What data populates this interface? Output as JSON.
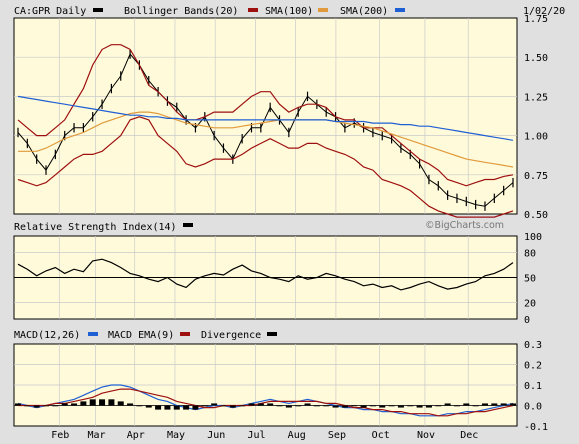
{
  "chart_data": [
    {
      "type": "line",
      "panel": "price",
      "title": "CA:GPR Daily",
      "date_label": "1/02/20",
      "watermark": "©BigCharts.com",
      "legend": [
        {
          "label": "Bollinger Bands(20)",
          "color": "#000000"
        },
        {
          "label": "SMA(100)",
          "color": "#9e1010"
        },
        {
          "label": "SMA(200)",
          "color": "#e09a3c"
        }
      ],
      "legend_extra_swatch": "#1f5fd4",
      "x_tick_labels": [
        "Feb",
        "Mar",
        "Apr",
        "May",
        "Jun",
        "Jul",
        "Aug",
        "Sep",
        "Oct",
        "Nov",
        "Dec"
      ],
      "y_ticks": [
        "1.75",
        "1.50",
        "1.25",
        "1.00",
        "0.75",
        "0.50"
      ],
      "ylim": [
        0.5,
        1.75
      ],
      "series": [
        {
          "name": "Price",
          "color": "#000000",
          "values": [
            1.02,
            0.95,
            0.85,
            0.78,
            0.88,
            1.0,
            1.05,
            1.05,
            1.12,
            1.2,
            1.3,
            1.38,
            1.52,
            1.45,
            1.35,
            1.28,
            1.22,
            1.18,
            1.1,
            1.05,
            1.12,
            1.0,
            0.92,
            0.85,
            0.98,
            1.05,
            1.05,
            1.18,
            1.1,
            1.02,
            1.15,
            1.25,
            1.2,
            1.15,
            1.12,
            1.05,
            1.08,
            1.05,
            1.02,
            1.0,
            0.98,
            0.92,
            0.88,
            0.82,
            0.72,
            0.68,
            0.62,
            0.6,
            0.58,
            0.56,
            0.55,
            0.6,
            0.65,
            0.7
          ]
        },
        {
          "name": "Bollinger Upper",
          "color": "#9e1010",
          "values": [
            1.1,
            1.05,
            1.0,
            1.0,
            1.05,
            1.1,
            1.2,
            1.3,
            1.45,
            1.55,
            1.58,
            1.58,
            1.55,
            1.45,
            1.32,
            1.28,
            1.22,
            1.15,
            1.1,
            1.1,
            1.12,
            1.15,
            1.15,
            1.15,
            1.2,
            1.25,
            1.28,
            1.28,
            1.2,
            1.15,
            1.18,
            1.2,
            1.2,
            1.18,
            1.12,
            1.1,
            1.1,
            1.05,
            1.05,
            1.05,
            1.0,
            0.95,
            0.9,
            0.85,
            0.82,
            0.78,
            0.72,
            0.7,
            0.68,
            0.7,
            0.72,
            0.72,
            0.74,
            0.75
          ]
        },
        {
          "name": "Bollinger Lower",
          "color": "#9e1010",
          "values": [
            0.72,
            0.7,
            0.68,
            0.7,
            0.75,
            0.8,
            0.85,
            0.88,
            0.88,
            0.9,
            0.95,
            1.0,
            1.1,
            1.12,
            1.1,
            1.0,
            0.95,
            0.9,
            0.82,
            0.8,
            0.82,
            0.85,
            0.85,
            0.85,
            0.88,
            0.92,
            0.95,
            0.98,
            0.95,
            0.92,
            0.92,
            0.95,
            0.95,
            0.92,
            0.9,
            0.88,
            0.85,
            0.8,
            0.78,
            0.72,
            0.7,
            0.68,
            0.65,
            0.6,
            0.55,
            0.52,
            0.5,
            0.48,
            0.48,
            0.48,
            0.48,
            0.48,
            0.5,
            0.52
          ]
        },
        {
          "name": "SMA(100)",
          "color": "#e09a3c",
          "values": [
            0.9,
            0.9,
            0.9,
            0.92,
            0.95,
            0.98,
            1.0,
            1.02,
            1.05,
            1.08,
            1.1,
            1.12,
            1.14,
            1.15,
            1.15,
            1.14,
            1.12,
            1.1,
            1.08,
            1.07,
            1.06,
            1.05,
            1.05,
            1.05,
            1.06,
            1.07,
            1.08,
            1.09,
            1.1,
            1.1,
            1.1,
            1.1,
            1.1,
            1.1,
            1.09,
            1.08,
            1.07,
            1.06,
            1.05,
            1.03,
            1.01,
            0.99,
            0.97,
            0.95,
            0.93,
            0.91,
            0.89,
            0.87,
            0.85,
            0.84,
            0.83,
            0.82,
            0.81,
            0.8
          ]
        },
        {
          "name": "SMA(200)",
          "color": "#1f5fd4",
          "values": [
            1.25,
            1.24,
            1.23,
            1.22,
            1.21,
            1.2,
            1.19,
            1.18,
            1.17,
            1.16,
            1.15,
            1.14,
            1.13,
            1.13,
            1.12,
            1.12,
            1.11,
            1.11,
            1.1,
            1.1,
            1.1,
            1.1,
            1.1,
            1.1,
            1.1,
            1.1,
            1.1,
            1.1,
            1.1,
            1.1,
            1.1,
            1.1,
            1.1,
            1.1,
            1.09,
            1.09,
            1.09,
            1.09,
            1.08,
            1.08,
            1.08,
            1.07,
            1.07,
            1.06,
            1.06,
            1.05,
            1.04,
            1.03,
            1.02,
            1.01,
            1.0,
            0.99,
            0.98,
            0.97
          ]
        }
      ]
    },
    {
      "type": "line",
      "panel": "rsi",
      "title": "Relative Strength Index(14)",
      "legend_swatch": "#000000",
      "y_ticks": [
        "100",
        "80",
        "50",
        "20",
        "0"
      ],
      "ylim": [
        0,
        100
      ],
      "reference_line": 50,
      "series": [
        {
          "name": "RSI",
          "color": "#000000",
          "values": [
            66,
            60,
            52,
            58,
            62,
            55,
            60,
            57,
            70,
            72,
            68,
            62,
            55,
            52,
            48,
            45,
            50,
            42,
            38,
            48,
            52,
            55,
            53,
            60,
            65,
            58,
            55,
            50,
            48,
            45,
            52,
            48,
            50,
            55,
            52,
            48,
            45,
            40,
            42,
            38,
            40,
            35,
            38,
            42,
            45,
            40,
            36,
            38,
            42,
            45,
            52,
            55,
            60,
            68
          ]
        }
      ]
    },
    {
      "type": "line",
      "panel": "macd",
      "legend": [
        {
          "label": "MACD(12,26)",
          "color": "#1f5fd4"
        },
        {
          "label": "MACD EMA(9)",
          "color": "#9e1010"
        },
        {
          "label": "Divergence",
          "color": "#000000"
        }
      ],
      "legend_first_swatch": "#000000",
      "y_ticks": [
        "0.3",
        "0.2",
        "0.1",
        "0.0",
        "-0.1"
      ],
      "ylim": [
        -0.1,
        0.3
      ],
      "series": [
        {
          "name": "MACD",
          "color": "#1f5fd4",
          "values": [
            0.01,
            0.0,
            -0.01,
            0.0,
            0.01,
            0.02,
            0.03,
            0.05,
            0.07,
            0.09,
            0.1,
            0.1,
            0.09,
            0.07,
            0.05,
            0.03,
            0.02,
            0.0,
            -0.01,
            -0.02,
            -0.01,
            0.0,
            0.0,
            -0.01,
            0.0,
            0.01,
            0.02,
            0.03,
            0.02,
            0.01,
            0.02,
            0.03,
            0.02,
            0.01,
            0.0,
            -0.01,
            -0.01,
            -0.02,
            -0.02,
            -0.03,
            -0.03,
            -0.04,
            -0.04,
            -0.05,
            -0.05,
            -0.05,
            -0.04,
            -0.04,
            -0.03,
            -0.03,
            -0.02,
            -0.01,
            0.0,
            0.01
          ]
        },
        {
          "name": "MACD EMA",
          "color": "#9e1010",
          "values": [
            0.0,
            0.0,
            0.0,
            0.0,
            0.01,
            0.01,
            0.02,
            0.03,
            0.04,
            0.06,
            0.07,
            0.08,
            0.08,
            0.07,
            0.06,
            0.05,
            0.04,
            0.02,
            0.01,
            0.0,
            -0.01,
            -0.01,
            0.0,
            0.0,
            0.0,
            0.0,
            0.01,
            0.02,
            0.02,
            0.02,
            0.02,
            0.02,
            0.02,
            0.01,
            0.01,
            0.0,
            -0.01,
            -0.01,
            -0.02,
            -0.02,
            -0.03,
            -0.03,
            -0.04,
            -0.04,
            -0.04,
            -0.05,
            -0.05,
            -0.04,
            -0.04,
            -0.03,
            -0.03,
            -0.02,
            -0.01,
            0.0
          ]
        }
      ]
    }
  ]
}
